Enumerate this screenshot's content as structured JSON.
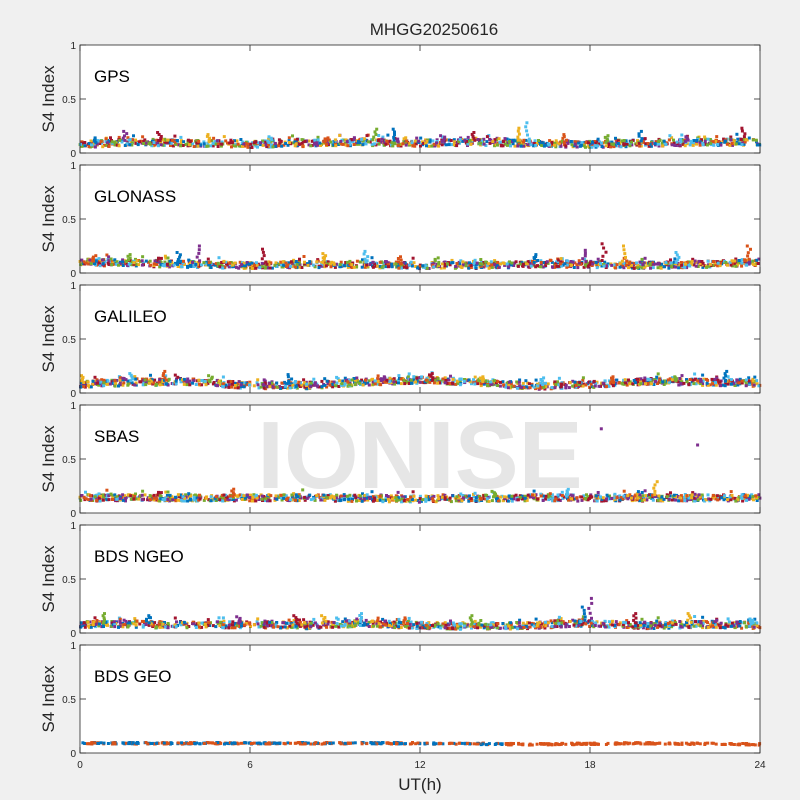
{
  "chart_data": {
    "type": "scatter",
    "title": "MHGG20250616",
    "xlabel": "UT(h)",
    "ylabel": "S4 Index",
    "xlim": [
      0,
      24
    ],
    "ylim": [
      0,
      1
    ],
    "xticks": [
      0,
      6,
      12,
      18,
      24
    ],
    "yticks": [
      0,
      0.5,
      1
    ],
    "watermark": "IONISE",
    "colors": [
      "#0072bd",
      "#d95319",
      "#edb120",
      "#7e2f8e",
      "#77ac30",
      "#4dbeee",
      "#a2142f"
    ],
    "panels": [
      {
        "label": "GPS",
        "baseline_s4": [
          [
            0,
            0.08
          ],
          [
            2,
            0.1
          ],
          [
            4,
            0.09
          ],
          [
            6,
            0.08
          ],
          [
            8,
            0.09
          ],
          [
            10,
            0.1
          ],
          [
            12,
            0.09
          ],
          [
            14,
            0.1
          ],
          [
            16,
            0.09
          ],
          [
            18,
            0.08
          ],
          [
            20,
            0.09
          ],
          [
            22,
            0.1
          ],
          [
            24,
            0.1
          ]
        ],
        "spikes": [
          [
            0.5,
            0.14
          ],
          [
            1.6,
            0.2
          ],
          [
            2.8,
            0.19
          ],
          [
            4.5,
            0.17
          ],
          [
            6.7,
            0.15
          ],
          [
            8.7,
            0.14
          ],
          [
            10.4,
            0.22
          ],
          [
            11.1,
            0.22
          ],
          [
            12.8,
            0.16
          ],
          [
            13.9,
            0.19
          ],
          [
            15.5,
            0.23
          ],
          [
            15.8,
            0.28
          ],
          [
            17.1,
            0.17
          ],
          [
            18.6,
            0.16
          ],
          [
            19.8,
            0.2
          ],
          [
            21.4,
            0.15
          ],
          [
            23.4,
            0.23
          ]
        ]
      },
      {
        "label": "GLONASS",
        "baseline_s4": [
          [
            0,
            0.1
          ],
          [
            2,
            0.09
          ],
          [
            4,
            0.08
          ],
          [
            6,
            0.07
          ],
          [
            8,
            0.08
          ],
          [
            10,
            0.08
          ],
          [
            12,
            0.07
          ],
          [
            14,
            0.07
          ],
          [
            16,
            0.08
          ],
          [
            18,
            0.08
          ],
          [
            20,
            0.07
          ],
          [
            22,
            0.08
          ],
          [
            24,
            0.1
          ]
        ],
        "spikes": [
          [
            0.5,
            0.16
          ],
          [
            1.7,
            0.17
          ],
          [
            3.5,
            0.19
          ],
          [
            4.2,
            0.25
          ],
          [
            6.5,
            0.22
          ],
          [
            8.6,
            0.18
          ],
          [
            10.1,
            0.2
          ],
          [
            11.3,
            0.15
          ],
          [
            12.6,
            0.14
          ],
          [
            16.1,
            0.17
          ],
          [
            17.8,
            0.21
          ],
          [
            18.5,
            0.27
          ],
          [
            19.2,
            0.25
          ],
          [
            21.1,
            0.19
          ],
          [
            23.6,
            0.25
          ]
        ]
      },
      {
        "label": "GALILEO",
        "baseline_s4": [
          [
            0,
            0.08
          ],
          [
            2,
            0.1
          ],
          [
            4,
            0.1
          ],
          [
            6,
            0.07
          ],
          [
            8,
            0.07
          ],
          [
            10,
            0.1
          ],
          [
            12,
            0.12
          ],
          [
            14,
            0.1
          ],
          [
            16,
            0.06
          ],
          [
            18,
            0.08
          ],
          [
            20,
            0.11
          ],
          [
            22,
            0.1
          ],
          [
            24,
            0.09
          ]
        ],
        "spikes": [
          [
            0.1,
            0.16
          ],
          [
            1.8,
            0.18
          ],
          [
            3.0,
            0.2
          ],
          [
            4.6,
            0.16
          ],
          [
            7.4,
            0.17
          ],
          [
            10.7,
            0.15
          ],
          [
            12.4,
            0.18
          ],
          [
            14.2,
            0.15
          ],
          [
            16.3,
            0.14
          ],
          [
            18.8,
            0.15
          ],
          [
            21.0,
            0.15
          ],
          [
            22.8,
            0.2
          ]
        ]
      },
      {
        "label": "SBAS",
        "baseline_s4": [
          [
            0,
            0.14
          ],
          [
            4,
            0.14
          ],
          [
            8,
            0.14
          ],
          [
            12,
            0.13
          ],
          [
            16,
            0.14
          ],
          [
            20,
            0.14
          ],
          [
            24,
            0.14
          ]
        ],
        "spikes": [
          [
            18.4,
            0.78
          ],
          [
            21.8,
            0.63
          ],
          [
            20.3,
            0.29
          ],
          [
            17.2,
            0.22
          ],
          [
            5.4,
            0.22
          ],
          [
            14.6,
            0.2
          ]
        ]
      },
      {
        "label": "BDS NGEO",
        "baseline_s4": [
          [
            0,
            0.08
          ],
          [
            2,
            0.08
          ],
          [
            4,
            0.07
          ],
          [
            6,
            0.08
          ],
          [
            8,
            0.07
          ],
          [
            10,
            0.09
          ],
          [
            12,
            0.07
          ],
          [
            14,
            0.06
          ],
          [
            16,
            0.07
          ],
          [
            18,
            0.09
          ],
          [
            20,
            0.07
          ],
          [
            22,
            0.08
          ],
          [
            24,
            0.07
          ]
        ],
        "spikes": [
          [
            0.8,
            0.18
          ],
          [
            2.4,
            0.16
          ],
          [
            5.6,
            0.15
          ],
          [
            7.6,
            0.16
          ],
          [
            8.6,
            0.16
          ],
          [
            9.9,
            0.18
          ],
          [
            11.5,
            0.14
          ],
          [
            13.8,
            0.16
          ],
          [
            17.8,
            0.24
          ],
          [
            18.0,
            0.32
          ],
          [
            19.6,
            0.18
          ],
          [
            21.5,
            0.18
          ],
          [
            23.7,
            0.13
          ]
        ]
      },
      {
        "label": "BDS GEO",
        "baseline_s4": [
          [
            0,
            0.09
          ],
          [
            4,
            0.09
          ],
          [
            8,
            0.09
          ],
          [
            12,
            0.09
          ],
          [
            16,
            0.08
          ],
          [
            20,
            0.09
          ],
          [
            24,
            0.08
          ]
        ],
        "spikes": []
      }
    ]
  }
}
